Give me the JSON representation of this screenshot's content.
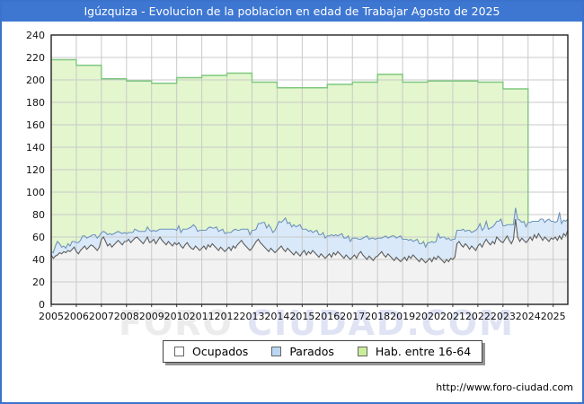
{
  "title": "Igúzquiza - Evolucion de la poblacion en edad de Trabajar Agosto de 2025",
  "footer_url": "http://www.foro-ciudad.com",
  "watermark": {
    "part1": "FORO",
    "part2": "CIUDAD.COM"
  },
  "colors": {
    "frame_border": "#3a72cc",
    "title_bg": "#3e77d2",
    "title_text": "#ffffff",
    "gridline": "#c9c9c9",
    "plot_border": "#222222",
    "ocupados_line": "#5c5c5c",
    "ocupados_fill": "#f2f2f2",
    "parados_line": "#6e93bb",
    "parados_fill": "#d9e9f9",
    "hab_line": "#7fc87f",
    "hab_fill": "#e4f6cd",
    "swatch_ocupados": "#ffffff",
    "swatch_parados": "#b9d7f2",
    "swatch_hab": "#c9ee9a"
  },
  "legend": {
    "items": [
      {
        "label": "Ocupados",
        "swatch": "colors.swatch_ocupados"
      },
      {
        "label": "Parados",
        "swatch": "colors.swatch_parados"
      },
      {
        "label": "Hab. entre 16-64",
        "swatch": "colors.swatch_hab"
      }
    ]
  },
  "chart_data": {
    "type": "area",
    "title": "Igúzquiza - Evolucion de la poblacion en edad de Trabajar Agosto de 2025",
    "xlabel": "",
    "ylabel": "",
    "x_ticks": [
      2005,
      2006,
      2007,
      2008,
      2009,
      2010,
      2011,
      2012,
      2013,
      2014,
      2015,
      2016,
      2017,
      2018,
      2019,
      2020,
      2021,
      2022,
      2023,
      2024,
      2025
    ],
    "y_axis": {
      "min": 0,
      "max": 240,
      "step": 20
    },
    "legend_position": "bottom",
    "grid": true,
    "series": [
      {
        "name": "Ocupados",
        "kind": "monthly-line",
        "start_year": 2005,
        "points_per_year": 12,
        "values": [
          44,
          41,
          43,
          44,
          46,
          45,
          47,
          46,
          48,
          47,
          49,
          51,
          47,
          45,
          48,
          50,
          52,
          49,
          51,
          53,
          52,
          50,
          48,
          51,
          58,
          60,
          56,
          52,
          54,
          51,
          53,
          55,
          57,
          55,
          53,
          56,
          56,
          58,
          55,
          57,
          59,
          60,
          58,
          56,
          54,
          57,
          60,
          55,
          56,
          58,
          54,
          57,
          60,
          57,
          55,
          53,
          56,
          54,
          52,
          55,
          53,
          55,
          52,
          50,
          53,
          55,
          52,
          50,
          49,
          52,
          50,
          48,
          50,
          52,
          49,
          53,
          51,
          54,
          52,
          50,
          48,
          51,
          49,
          47,
          49,
          51,
          48,
          52,
          50,
          53,
          55,
          57,
          54,
          52,
          50,
          48,
          50,
          53,
          56,
          58,
          55,
          53,
          51,
          49,
          47,
          50,
          48,
          46,
          48,
          50,
          52,
          49,
          47,
          50,
          48,
          46,
          44,
          47,
          45,
          43,
          46,
          48,
          44,
          47,
          45,
          48,
          46,
          44,
          42,
          45,
          43,
          41,
          43,
          45,
          42,
          46,
          44,
          47,
          45,
          43,
          41,
          44,
          42,
          40,
          42,
          44,
          41,
          45,
          47,
          44,
          42,
          40,
          43,
          41,
          39,
          42,
          43,
          45,
          47,
          44,
          42,
          45,
          43,
          41,
          39,
          42,
          40,
          38,
          40,
          42,
          39,
          43,
          41,
          44,
          42,
          40,
          38,
          41,
          39,
          37,
          39,
          41,
          38,
          42,
          40,
          43,
          41,
          39,
          37,
          40,
          38,
          41,
          40,
          42,
          54,
          56,
          53,
          51,
          54,
          52,
          49,
          52,
          50,
          48,
          52,
          54,
          51,
          55,
          58,
          55,
          53,
          56,
          54,
          60,
          58,
          56,
          55,
          58,
          61,
          57,
          54,
          58,
          76,
          60,
          56,
          59,
          57,
          55,
          57,
          60,
          57,
          62,
          59,
          63,
          60,
          57,
          60,
          58,
          56,
          59,
          58,
          60,
          57,
          61,
          58,
          63,
          61,
          66
        ]
      },
      {
        "name": "Parados",
        "kind": "monthly-line",
        "stacked_on": "Ocupados",
        "start_year": 2005,
        "points_per_year": 12,
        "values": [
          3,
          5,
          9,
          12,
          8,
          6,
          5,
          4,
          6,
          5,
          7,
          5,
          8,
          10,
          9,
          11,
          9,
          10,
          9,
          8,
          10,
          12,
          11,
          10,
          6,
          5,
          8,
          10,
          9,
          11,
          10,
          9,
          8,
          9,
          10,
          8,
          7,
          6,
          9,
          7,
          8,
          6,
          7,
          9,
          11,
          8,
          9,
          11,
          9,
          8,
          11,
          9,
          7,
          10,
          12,
          14,
          11,
          13,
          15,
          12,
          13,
          15,
          12,
          17,
          14,
          12,
          16,
          19,
          22,
          17,
          15,
          18,
          16,
          14,
          17,
          15,
          18,
          14,
          16,
          19,
          17,
          15,
          18,
          16,
          15,
          13,
          16,
          14,
          17,
          13,
          11,
          10,
          13,
          15,
          17,
          14,
          16,
          13,
          11,
          14,
          17,
          20,
          22,
          19,
          24,
          18,
          16,
          20,
          22,
          24,
          21,
          26,
          30,
          22,
          25,
          23,
          27,
          22,
          25,
          28,
          21,
          19,
          23,
          18,
          21,
          16,
          19,
          22,
          20,
          17,
          21,
          18,
          18,
          16,
          20,
          15,
          18,
          14,
          17,
          20,
          18,
          15,
          19,
          16,
          17,
          15,
          18,
          13,
          11,
          15,
          18,
          21,
          15,
          18,
          20,
          16,
          16,
          14,
          12,
          16,
          19,
          14,
          17,
          20,
          22,
          17,
          20,
          23,
          18,
          16,
          19,
          14,
          17,
          12,
          15,
          18,
          16,
          13,
          17,
          14,
          16,
          14,
          18,
          13,
          16,
          20,
          18,
          21,
          23,
          18,
          21,
          16,
          18,
          16,
          12,
          10,
          13,
          16,
          11,
          14,
          17,
          12,
          15,
          18,
          16,
          18,
          15,
          13,
          16,
          12,
          15,
          13,
          17,
          14,
          16,
          20,
          15,
          12,
          10,
          14,
          17,
          13,
          10,
          16,
          19,
          14,
          17,
          14,
          16,
          13,
          17,
          12,
          15,
          11,
          16,
          19,
          13,
          17,
          20,
          15,
          16,
          13,
          17,
          21,
          14,
          12,
          13,
          10
        ]
      },
      {
        "name": "Hab. entre 16-64",
        "kind": "annual-step",
        "start_year": 2005,
        "end_x": 2024,
        "values": [
          218,
          213,
          201,
          199,
          197,
          202,
          204,
          206,
          198,
          193,
          193,
          196,
          198,
          205,
          198,
          199,
          199,
          198,
          192
        ]
      }
    ]
  }
}
